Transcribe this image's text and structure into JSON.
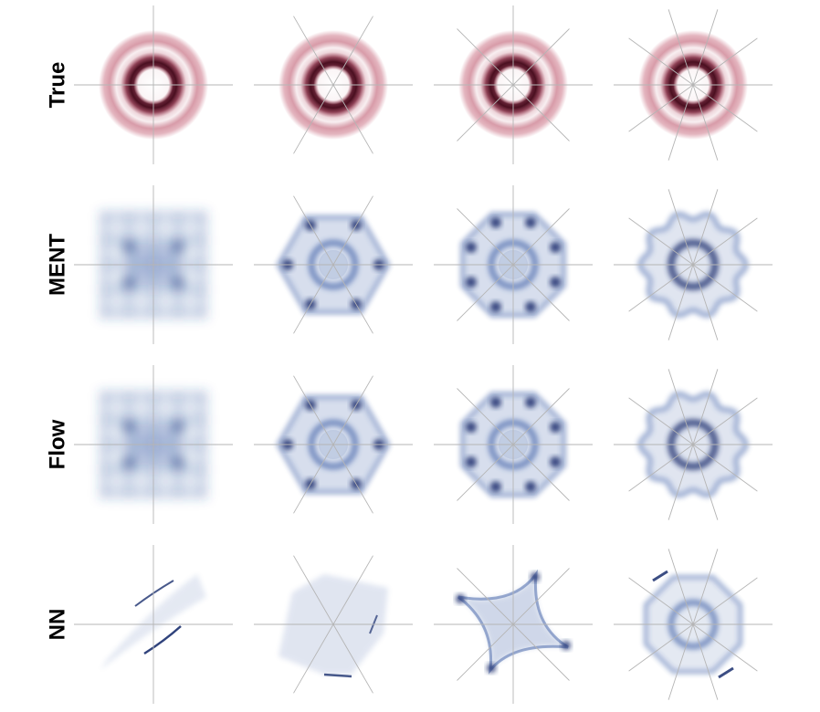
{
  "figure": {
    "rows": [
      {
        "label": "True",
        "color": "#a8324c",
        "kind": "rings"
      },
      {
        "label": "MENT",
        "color": "#2c4f9e",
        "kind": "recon"
      },
      {
        "label": "Flow",
        "color": "#2c4f9e",
        "kind": "recon"
      },
      {
        "label": "NN",
        "color": "#2c4f9e",
        "kind": "nn"
      }
    ],
    "columns": [
      {
        "projection_angles": 2
      },
      {
        "projection_angles": 3
      },
      {
        "projection_angles": 4
      },
      {
        "projection_angles": 5
      }
    ],
    "line_color": "#b5b5b5"
  }
}
